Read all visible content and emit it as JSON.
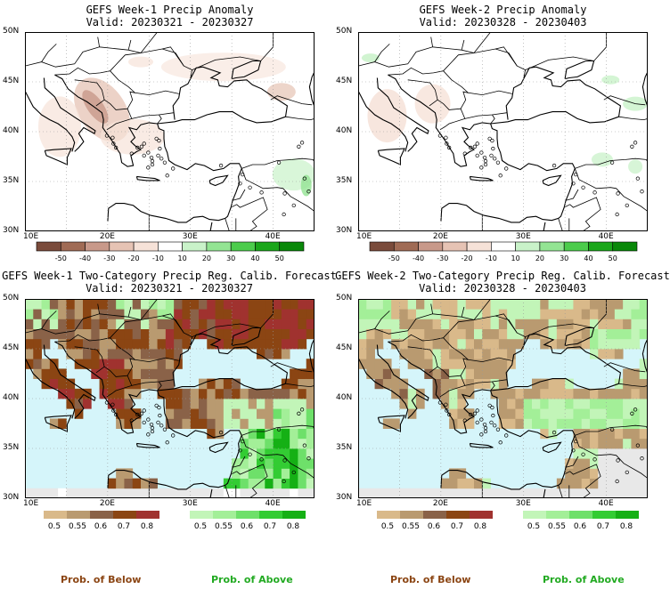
{
  "panels": [
    {
      "title": "GEFS Week-1 Precip Anomaly",
      "valid": "Valid: 20230321 - 20230327"
    },
    {
      "title": "GEFS Week-2 Precip Anomaly",
      "valid": "Valid: 20230328 - 20230403"
    },
    {
      "title": "GEFS Week-1 Two-Category Precip Reg. Calib. Forecast",
      "valid": "Valid: 20230321 - 20230327"
    },
    {
      "title": "GEFS Week-2 Two-Category Precip Reg. Calib. Forecast",
      "valid": "Valid: 20230328 - 20230403"
    }
  ],
  "lat_labels": [
    "50N",
    "45N",
    "40N",
    "35N",
    "30N"
  ],
  "lon_labels": [
    "10E",
    "20E",
    "30E",
    "40E"
  ],
  "anomaly_colorbar": {
    "ticks": [
      "-50",
      "-40",
      "-30",
      "-20",
      "-10",
      "10",
      "20",
      "30",
      "40",
      "50"
    ],
    "colors": [
      "#7a4b3b",
      "#a06b55",
      "#c8998a",
      "#e6c3b4",
      "#f6e2d8",
      "#ffffff",
      "#c9f2c9",
      "#93e493",
      "#4ccc4c",
      "#1aa61a",
      "#098809"
    ]
  },
  "prob_below": {
    "ticks": [
      "0.5",
      "0.55",
      "0.6",
      "0.7",
      "0.8"
    ],
    "colors": [
      "#d9b98a",
      "#b99a70",
      "#8a6248",
      "#8b4513",
      "#a0322f"
    ]
  },
  "prob_above": {
    "ticks": [
      "0.5",
      "0.55",
      "0.6",
      "0.7",
      "0.8"
    ],
    "colors": [
      "#c2f5b8",
      "#a3ef98",
      "#6ee06a",
      "#33cc33",
      "#15b015"
    ]
  },
  "footer": {
    "below": "Prob. of Below",
    "above": "Prob. of Above"
  },
  "colors": {
    "below_text": "#8b4513",
    "above_text": "#22aa22",
    "sea": "#d5f5fa",
    "land": "#ffffff",
    "nodata": "#e8e8e8"
  }
}
